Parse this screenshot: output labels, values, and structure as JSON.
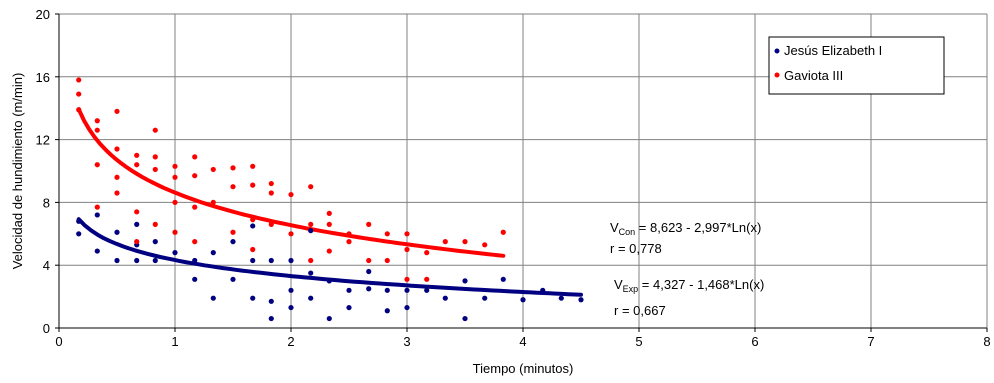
{
  "chart_data": {
    "type": "scatter",
    "title": "",
    "xlabel": "Tiempo (minutos)",
    "ylabel": "Velocidad de hundimiento (m/min)",
    "xlim": [
      0,
      8
    ],
    "ylim": [
      0,
      20
    ],
    "xticks": [
      "0",
      "1",
      "2",
      "3",
      "4",
      "5",
      "6",
      "7",
      "8"
    ],
    "yticks": [
      "0",
      "4",
      "8",
      "12",
      "16",
      "20"
    ],
    "grid": true,
    "legend_position": "top-right",
    "series": [
      {
        "name": "Jesús Elizabeth I",
        "color": "#000080",
        "points": [
          [
            0.17,
            6.0
          ],
          [
            0.17,
            6.8
          ],
          [
            0.33,
            7.2
          ],
          [
            0.33,
            4.9
          ],
          [
            0.5,
            6.1
          ],
          [
            0.5,
            4.3
          ],
          [
            0.67,
            6.6
          ],
          [
            0.67,
            4.3
          ],
          [
            0.67,
            5.3
          ],
          [
            0.83,
            5.5
          ],
          [
            0.83,
            4.3
          ],
          [
            1.0,
            4.8
          ],
          [
            1.17,
            4.3
          ],
          [
            1.17,
            3.1
          ],
          [
            1.33,
            4.8
          ],
          [
            1.33,
            1.9
          ],
          [
            1.5,
            5.5
          ],
          [
            1.5,
            3.1
          ],
          [
            1.67,
            6.5
          ],
          [
            1.67,
            4.3
          ],
          [
            1.67,
            1.9
          ],
          [
            1.83,
            4.3
          ],
          [
            1.83,
            1.7
          ],
          [
            1.83,
            0.6
          ],
          [
            2.0,
            4.3
          ],
          [
            2.0,
            2.4
          ],
          [
            2.0,
            1.3
          ],
          [
            2.17,
            3.5
          ],
          [
            2.17,
            1.9
          ],
          [
            2.17,
            6.2
          ],
          [
            2.33,
            3.0
          ],
          [
            2.33,
            0.6
          ],
          [
            2.5,
            2.4
          ],
          [
            2.5,
            1.3
          ],
          [
            2.67,
            3.6
          ],
          [
            2.67,
            2.5
          ],
          [
            2.83,
            2.4
          ],
          [
            2.83,
            1.1
          ],
          [
            3.0,
            2.4
          ],
          [
            3.0,
            1.3
          ],
          [
            3.17,
            2.4
          ],
          [
            3.33,
            1.9
          ],
          [
            3.5,
            3.0
          ],
          [
            3.5,
            0.6
          ],
          [
            3.67,
            1.9
          ],
          [
            3.83,
            3.1
          ],
          [
            4.0,
            1.8
          ],
          [
            4.17,
            2.4
          ],
          [
            4.33,
            1.9
          ],
          [
            4.5,
            1.8
          ]
        ],
        "fit": {
          "type": "log",
          "a": 4.327,
          "b": -1.468,
          "x_range": [
            0.17,
            4.5
          ]
        }
      },
      {
        "name": "Gaviota III",
        "color": "#ff0000",
        "points": [
          [
            0.17,
            15.8
          ],
          [
            0.17,
            14.9
          ],
          [
            0.17,
            13.9
          ],
          [
            0.33,
            13.2
          ],
          [
            0.33,
            12.6
          ],
          [
            0.33,
            10.4
          ],
          [
            0.33,
            7.7
          ],
          [
            0.5,
            13.8
          ],
          [
            0.5,
            11.4
          ],
          [
            0.5,
            9.6
          ],
          [
            0.5,
            8.6
          ],
          [
            0.67,
            11.0
          ],
          [
            0.67,
            10.4
          ],
          [
            0.67,
            7.4
          ],
          [
            0.67,
            5.5
          ],
          [
            0.83,
            12.6
          ],
          [
            0.83,
            10.9
          ],
          [
            0.83,
            10.1
          ],
          [
            0.83,
            6.6
          ],
          [
            1.0,
            10.3
          ],
          [
            1.0,
            9.6
          ],
          [
            1.0,
            8.0
          ],
          [
            1.0,
            6.1
          ],
          [
            1.17,
            10.9
          ],
          [
            1.17,
            9.7
          ],
          [
            1.17,
            7.7
          ],
          [
            1.17,
            5.5
          ],
          [
            1.33,
            10.1
          ],
          [
            1.33,
            8.0
          ],
          [
            1.5,
            10.2
          ],
          [
            1.5,
            9.0
          ],
          [
            1.5,
            6.1
          ],
          [
            1.67,
            10.3
          ],
          [
            1.67,
            9.1
          ],
          [
            1.67,
            6.9
          ],
          [
            1.67,
            5.0
          ],
          [
            1.83,
            9.2
          ],
          [
            1.83,
            8.6
          ],
          [
            1.83,
            6.6
          ],
          [
            2.0,
            8.5
          ],
          [
            2.0,
            6.0
          ],
          [
            2.17,
            9.0
          ],
          [
            2.17,
            6.6
          ],
          [
            2.17,
            4.3
          ],
          [
            2.33,
            7.3
          ],
          [
            2.33,
            6.6
          ],
          [
            2.33,
            4.9
          ],
          [
            2.5,
            6.0
          ],
          [
            2.5,
            5.5
          ],
          [
            2.67,
            6.6
          ],
          [
            2.67,
            4.3
          ],
          [
            2.83,
            6.0
          ],
          [
            2.83,
            4.3
          ],
          [
            3.0,
            6.0
          ],
          [
            3.0,
            5.0
          ],
          [
            3.0,
            3.1
          ],
          [
            3.17,
            4.8
          ],
          [
            3.17,
            3.1
          ],
          [
            3.33,
            5.5
          ],
          [
            3.5,
            5.5
          ],
          [
            3.67,
            5.3
          ],
          [
            3.83,
            6.1
          ]
        ],
        "fit": {
          "type": "log",
          "a": 8.623,
          "b": -2.997,
          "x_range": [
            0.17,
            3.83
          ]
        }
      }
    ],
    "annotations": [
      {
        "var": "V",
        "sub": "Con",
        "equation": " = 8,623 - 2,997*Ln(x)",
        "r": "r = 0,778"
      },
      {
        "var": "V",
        "sub": "Exp",
        "equation": " = 4,327 - 1,468*Ln(x)",
        "r": "r = 0,667"
      }
    ]
  }
}
